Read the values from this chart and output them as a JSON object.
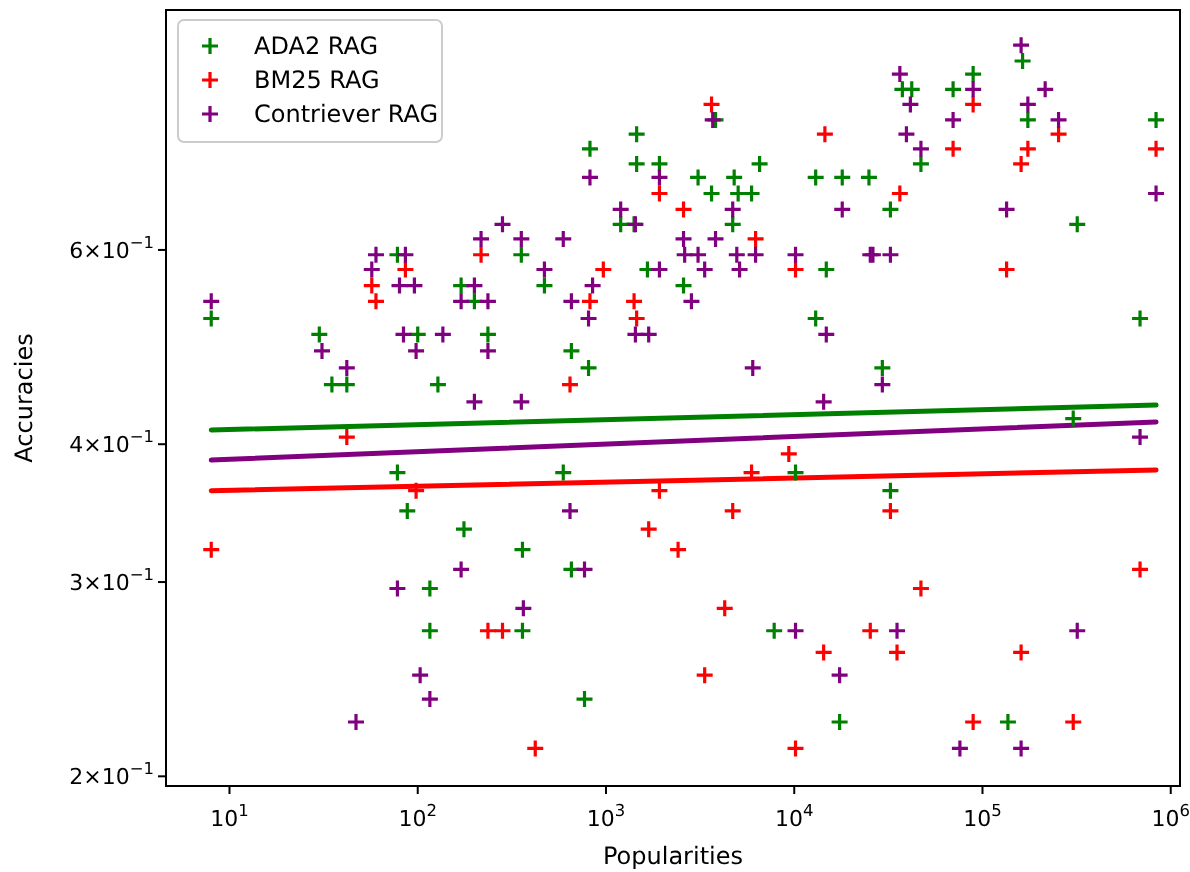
{
  "chart_data": {
    "type": "scatter",
    "xlabel": "Popularities",
    "ylabel": "Accuracies",
    "log": "xy",
    "grid": false,
    "legend": "top left",
    "marker": "cross",
    "xlim": [
      4.6,
      1120000
    ],
    "ylim": [
      0.196,
      0.99
    ],
    "xticks": [
      {
        "value": 10,
        "label": "10$^{1}$"
      },
      {
        "value": 100,
        "label": "10$^{2}$"
      },
      {
        "value": 1000,
        "label": "10$^{3}$"
      },
      {
        "value": 10000,
        "label": "10$^{4}$"
      },
      {
        "value": 100000,
        "label": "10$^{5}$"
      },
      {
        "value": 1000000,
        "label": "10$^{6}$"
      }
    ],
    "yticks": [
      {
        "value": 0.2,
        "label": "2×10$^{−1}$"
      },
      {
        "value": 0.3,
        "label": "3×10$^{−1}$"
      },
      {
        "value": 0.4,
        "label": "4×10$^{−1}$"
      },
      {
        "value": 0.6,
        "label": "6×10$^{−1}$"
      }
    ],
    "series": [
      {
        "name": "ADA2 RAG",
        "color": "#008000",
        "x": [
          8,
          30,
          35,
          42,
          78,
          78,
          88,
          100,
          128,
          116,
          116,
          170,
          200,
          236,
          176,
          355,
          360,
          360,
          471,
          655,
          808,
          822,
          1455,
          1455,
          1197,
          1410,
          1923,
          1660,
          3084,
          3637,
          4797,
          5036,
          5934,
          6546,
          4712,
          3819,
          2582,
          13000,
          17990,
          24940,
          14800,
          13000,
          593,
          10160,
          655,
          7825,
          769,
          17420,
          32430,
          37530,
          42100,
          47100,
          69800,
          89200,
          163300,
          174200,
          318700,
          835600,
          687000,
          29380,
          303400,
          32430,
          136500
        ],
        "values": [
          0.52,
          0.503,
          0.453,
          0.453,
          0.594,
          0.377,
          0.348,
          0.503,
          0.453,
          0.296,
          0.271,
          0.557,
          0.539,
          0.503,
          0.335,
          0.594,
          0.321,
          0.271,
          0.557,
          0.486,
          0.469,
          0.741,
          0.764,
          0.718,
          0.633,
          0.633,
          0.718,
          0.576,
          0.698,
          0.675,
          0.698,
          0.675,
          0.675,
          0.718,
          0.633,
          0.787,
          0.557,
          0.698,
          0.698,
          0.698,
          0.576,
          0.52,
          0.377,
          0.377,
          0.308,
          0.271,
          0.235,
          0.224,
          0.653,
          0.839,
          0.839,
          0.718,
          0.839,
          0.866,
          0.89,
          0.787,
          0.633,
          0.787,
          0.52,
          0.469,
          0.422,
          0.363,
          0.224
        ]
      },
      {
        "name": "BM25 RAG",
        "color": "#ff0000",
        "x": [
          8,
          57,
          60,
          42,
          86,
          98,
          217,
          236,
          282,
          644,
          822,
          968,
          1410,
          1455,
          1923,
          2582,
          3637,
          6234,
          10160,
          14550,
          9357,
          5934,
          1923,
          1686,
          4712,
          2415,
          4273,
          3344,
          421,
          10160,
          14330,
          25350,
          36390,
          69800,
          89200,
          160400,
          174200,
          253600,
          134300,
          835600,
          32430,
          47100,
          35160,
          160400,
          89200,
          303400,
          687000
        ],
        "values": [
          0.321,
          0.557,
          0.539,
          0.406,
          0.576,
          0.363,
          0.594,
          0.271,
          0.271,
          0.453,
          0.539,
          0.576,
          0.539,
          0.52,
          0.675,
          0.653,
          0.813,
          0.614,
          0.576,
          0.764,
          0.392,
          0.377,
          0.363,
          0.335,
          0.348,
          0.321,
          0.284,
          0.247,
          0.212,
          0.212,
          0.259,
          0.271,
          0.675,
          0.741,
          0.813,
          0.718,
          0.741,
          0.764,
          0.576,
          0.741,
          0.348,
          0.296,
          0.259,
          0.259,
          0.224,
          0.224,
          0.308
        ]
      },
      {
        "name": "Contriever RAG",
        "color": "#800080",
        "x": [
          8,
          31,
          42,
          60,
          57,
          86,
          80,
          96,
          84,
          98,
          136,
          200,
          170,
          236,
          217,
          282,
          355,
          200,
          355,
          236,
          78,
          170,
          364,
          103,
          116,
          47,
          471,
          593,
          655,
          849,
          808,
          822,
          1197,
          1433,
          1433,
          1686,
          1923,
          1923,
          2582,
          2618,
          3084,
          2844,
          3344,
          3819,
          3690,
          4712,
          4953,
          6234,
          5124,
          10160,
          14800,
          17990,
          25350,
          6021,
          14330,
          644,
          769,
          10160,
          17420,
          36390,
          41400,
          39440,
          47100,
          69800,
          89200,
          160400,
          174200,
          215300,
          253600,
          134300,
          26180,
          32430,
          835600,
          29380,
          687000,
          35160,
          318700,
          75860,
          160400
        ],
        "values": [
          0.539,
          0.486,
          0.469,
          0.594,
          0.576,
          0.594,
          0.557,
          0.557,
          0.503,
          0.486,
          0.503,
          0.557,
          0.539,
          0.539,
          0.614,
          0.633,
          0.614,
          0.437,
          0.437,
          0.486,
          0.296,
          0.308,
          0.284,
          0.247,
          0.235,
          0.224,
          0.576,
          0.614,
          0.539,
          0.557,
          0.52,
          0.698,
          0.653,
          0.633,
          0.503,
          0.503,
          0.698,
          0.576,
          0.614,
          0.594,
          0.594,
          0.539,
          0.576,
          0.614,
          0.787,
          0.653,
          0.594,
          0.594,
          0.576,
          0.594,
          0.503,
          0.653,
          0.594,
          0.469,
          0.437,
          0.348,
          0.308,
          0.271,
          0.247,
          0.866,
          0.813,
          0.764,
          0.741,
          0.787,
          0.839,
          0.92,
          0.813,
          0.839,
          0.787,
          0.653,
          0.594,
          0.594,
          0.675,
          0.453,
          0.406,
          0.271,
          0.271,
          0.212,
          0.212
        ]
      },
      {
        "type": "line",
        "marker": "none",
        "color": "#008000",
        "x": [
          8,
          836000
        ],
        "values": [
          0.412,
          0.434
        ]
      },
      {
        "type": "line",
        "marker": "none",
        "color": "#800080",
        "x": [
          8,
          836000
        ],
        "values": [
          0.387,
          0.419
        ]
      },
      {
        "type": "line",
        "marker": "none",
        "color": "#ff0000",
        "x": [
          8,
          836000
        ],
        "values": [
          0.363,
          0.379
        ]
      }
    ]
  }
}
